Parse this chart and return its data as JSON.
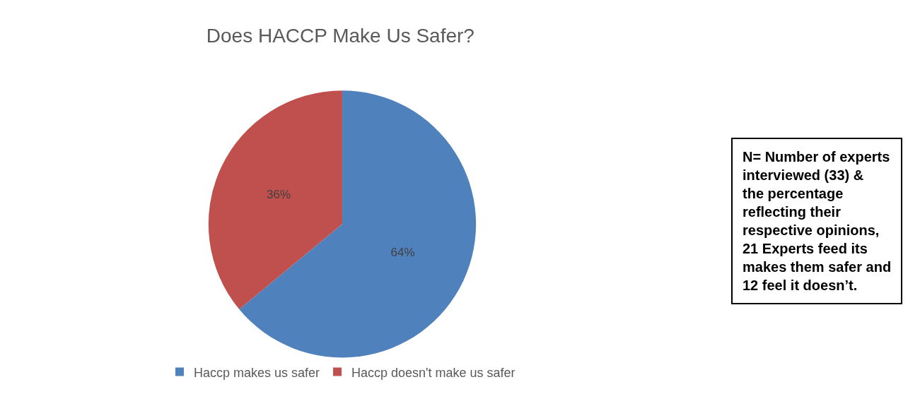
{
  "chart_data": {
    "type": "pie",
    "title": "Does HACCP Make Us Safer?",
    "categories": [
      "Haccp makes us safer",
      "Haccp doesn't make us safer"
    ],
    "values": [
      64,
      36
    ],
    "colors": [
      "#4f81bd",
      "#c0504d"
    ],
    "value_labels": [
      "64%",
      "36%"
    ],
    "legend": "bottom",
    "annotations": [
      "N= Number of experts interviewed (33) & the percentage reflecting their respective opinions, 21 Experts feed its makes them safer and 12 feel it doesn’t."
    ]
  }
}
